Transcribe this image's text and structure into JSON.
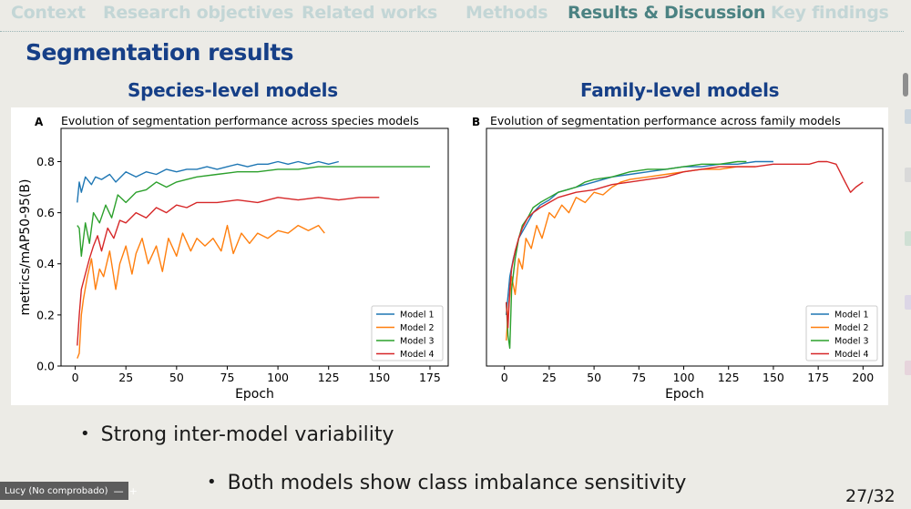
{
  "nav": {
    "items": [
      {
        "label": "Context",
        "active": false
      },
      {
        "label": "Research objectives",
        "active": false
      },
      {
        "label": "Related works",
        "active": false
      },
      {
        "label": "Methods",
        "active": false
      },
      {
        "label": "Results & Discussion",
        "active": true
      },
      {
        "label": "Key findings",
        "active": false
      }
    ]
  },
  "slide": {
    "title": "Segmentation results",
    "left_panel_title": "Species-level models",
    "right_panel_title": "Family-level models",
    "bullets": [
      "Strong inter-model variability",
      "Both models show class imbalance sensitivity"
    ],
    "bullet_symbol": "•",
    "page_number": "27/32"
  },
  "video": {
    "label": "Lucy (No comprobado)",
    "minimize": "—",
    "add": "+"
  },
  "colors": {
    "accent": "#163f87",
    "nav_active": "#4b8282",
    "nav_inactive": "#c3d6d6",
    "model1": "#1f77b4",
    "model2": "#ff7f0e",
    "model3": "#2ca02c",
    "model4": "#d62728"
  },
  "chart_data": [
    {
      "type": "line",
      "panel_letter": "A",
      "title": "Evolution of segmentation performance across species models",
      "xlabel": "Epoch",
      "ylabel": "metrics/mAP50-95(B)",
      "xlim": [
        -7,
        184
      ],
      "ylim": [
        0,
        0.93
      ],
      "xticks": [
        0,
        25,
        50,
        75,
        100,
        125,
        150,
        175
      ],
      "yticks": [
        0.0,
        0.2,
        0.4,
        0.6,
        0.8
      ],
      "legend_position": "lower-right",
      "series": [
        {
          "name": "Model 1",
          "color": "#1f77b4",
          "x": [
            1,
            2,
            3,
            5,
            8,
            10,
            13,
            17,
            20,
            25,
            30,
            35,
            40,
            45,
            50,
            55,
            60,
            65,
            70,
            75,
            80,
            85,
            90,
            95,
            100,
            105,
            110,
            115,
            120,
            125,
            130
          ],
          "y": [
            0.64,
            0.72,
            0.68,
            0.74,
            0.71,
            0.74,
            0.73,
            0.75,
            0.72,
            0.76,
            0.74,
            0.76,
            0.75,
            0.77,
            0.76,
            0.77,
            0.77,
            0.78,
            0.77,
            0.78,
            0.79,
            0.78,
            0.79,
            0.79,
            0.8,
            0.79,
            0.8,
            0.79,
            0.8,
            0.79,
            0.8
          ]
        },
        {
          "name": "Model 2",
          "color": "#ff7f0e",
          "x": [
            1,
            2,
            3,
            4,
            6,
            8,
            10,
            12,
            14,
            17,
            20,
            22,
            25,
            28,
            30,
            33,
            36,
            40,
            43,
            46,
            50,
            53,
            57,
            60,
            64,
            68,
            72,
            75,
            78,
            82,
            86,
            90,
            95,
            100,
            105,
            110,
            115,
            120,
            123
          ],
          "y": [
            0.03,
            0.05,
            0.2,
            0.26,
            0.35,
            0.42,
            0.3,
            0.38,
            0.35,
            0.45,
            0.3,
            0.4,
            0.47,
            0.36,
            0.44,
            0.5,
            0.4,
            0.47,
            0.37,
            0.5,
            0.43,
            0.52,
            0.45,
            0.5,
            0.47,
            0.5,
            0.45,
            0.55,
            0.44,
            0.52,
            0.48,
            0.52,
            0.5,
            0.53,
            0.52,
            0.55,
            0.53,
            0.55,
            0.52
          ]
        },
        {
          "name": "Model 3",
          "color": "#2ca02c",
          "x": [
            1,
            2,
            3,
            5,
            7,
            9,
            12,
            15,
            18,
            21,
            25,
            30,
            35,
            40,
            45,
            50,
            55,
            60,
            70,
            80,
            90,
            100,
            110,
            120,
            130,
            140,
            150,
            160,
            170,
            175
          ],
          "y": [
            0.55,
            0.54,
            0.43,
            0.56,
            0.48,
            0.6,
            0.56,
            0.63,
            0.58,
            0.67,
            0.64,
            0.68,
            0.69,
            0.72,
            0.7,
            0.72,
            0.73,
            0.74,
            0.75,
            0.76,
            0.76,
            0.77,
            0.77,
            0.78,
            0.78,
            0.78,
            0.78,
            0.78,
            0.78,
            0.78
          ]
        },
        {
          "name": "Model 4",
          "color": "#d62728",
          "x": [
            1,
            2,
            3,
            5,
            7,
            9,
            11,
            13,
            16,
            19,
            22,
            25,
            30,
            35,
            40,
            45,
            50,
            55,
            60,
            70,
            80,
            90,
            100,
            110,
            120,
            130,
            140,
            150
          ],
          "y": [
            0.08,
            0.2,
            0.3,
            0.36,
            0.42,
            0.47,
            0.51,
            0.45,
            0.54,
            0.5,
            0.57,
            0.56,
            0.6,
            0.58,
            0.62,
            0.6,
            0.63,
            0.62,
            0.64,
            0.64,
            0.65,
            0.64,
            0.66,
            0.65,
            0.66,
            0.65,
            0.66,
            0.66
          ]
        }
      ]
    },
    {
      "type": "line",
      "panel_letter": "B",
      "title": "Evolution of segmentation performance across family models",
      "xlabel": "Epoch",
      "ylabel": "",
      "xlim": [
        -10,
        211
      ],
      "ylim": [
        0,
        0.93
      ],
      "xticks": [
        0,
        25,
        50,
        75,
        100,
        125,
        150,
        175,
        200
      ],
      "yticks": [],
      "legend_position": "lower-right",
      "series": [
        {
          "name": "Model 1",
          "color": "#1f77b4",
          "x": [
            1,
            3,
            5,
            8,
            12,
            16,
            20,
            25,
            30,
            40,
            50,
            60,
            70,
            80,
            90,
            100,
            110,
            120,
            130,
            140,
            150
          ],
          "y": [
            0.2,
            0.35,
            0.42,
            0.5,
            0.55,
            0.6,
            0.63,
            0.65,
            0.68,
            0.7,
            0.72,
            0.74,
            0.75,
            0.76,
            0.77,
            0.78,
            0.78,
            0.79,
            0.79,
            0.8,
            0.8
          ]
        },
        {
          "name": "Model 2",
          "color": "#ff7f0e",
          "x": [
            1,
            2,
            4,
            6,
            8,
            10,
            12,
            15,
            18,
            21,
            25,
            28,
            32,
            36,
            40,
            45,
            50,
            55,
            60,
            65,
            70,
            80,
            90,
            100,
            110,
            120,
            130,
            140
          ],
          "y": [
            0.1,
            0.2,
            0.35,
            0.28,
            0.42,
            0.38,
            0.5,
            0.46,
            0.55,
            0.5,
            0.6,
            0.58,
            0.63,
            0.6,
            0.66,
            0.64,
            0.68,
            0.67,
            0.7,
            0.72,
            0.73,
            0.74,
            0.75,
            0.76,
            0.77,
            0.77,
            0.78,
            0.78
          ]
        },
        {
          "name": "Model 3",
          "color": "#2ca02c",
          "x": [
            1,
            2,
            3,
            4,
            6,
            8,
            10,
            13,
            16,
            20,
            25,
            30,
            35,
            40,
            45,
            50,
            60,
            70,
            80,
            90,
            100,
            110,
            120,
            130,
            135
          ],
          "y": [
            0.25,
            0.12,
            0.07,
            0.3,
            0.42,
            0.5,
            0.55,
            0.58,
            0.62,
            0.64,
            0.66,
            0.68,
            0.69,
            0.7,
            0.72,
            0.73,
            0.74,
            0.76,
            0.77,
            0.77,
            0.78,
            0.79,
            0.79,
            0.8,
            0.8
          ]
        },
        {
          "name": "Model 4",
          "color": "#d62728",
          "x": [
            1,
            2,
            3,
            4,
            6,
            8,
            10,
            13,
            16,
            20,
            25,
            30,
            40,
            50,
            60,
            70,
            80,
            90,
            100,
            110,
            120,
            130,
            140,
            150,
            160,
            170,
            175,
            180,
            185,
            190,
            193,
            196,
            200
          ],
          "y": [
            0.25,
            0.15,
            0.3,
            0.38,
            0.45,
            0.5,
            0.54,
            0.58,
            0.6,
            0.62,
            0.64,
            0.66,
            0.68,
            0.69,
            0.71,
            0.72,
            0.73,
            0.74,
            0.76,
            0.77,
            0.78,
            0.78,
            0.78,
            0.79,
            0.79,
            0.79,
            0.8,
            0.8,
            0.79,
            0.72,
            0.68,
            0.7,
            0.72
          ]
        }
      ]
    }
  ]
}
